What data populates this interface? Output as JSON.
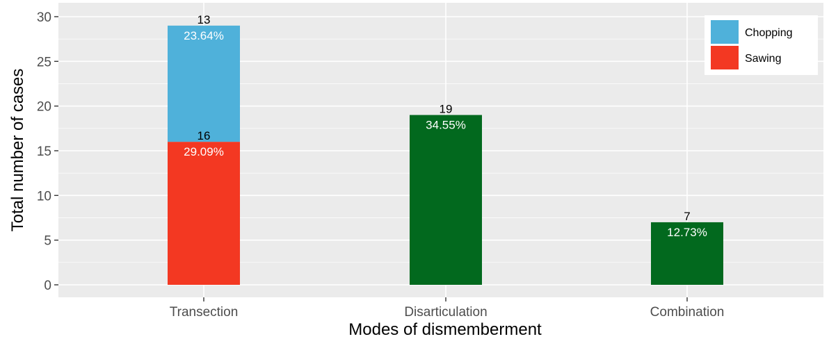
{
  "chart_data": {
    "type": "bar",
    "stacked": true,
    "title": "",
    "xlabel": "Modes of dismemberment",
    "ylabel": "Total number of cases",
    "ylim": [
      0,
      30
    ],
    "yticks": [
      0,
      5,
      10,
      15,
      20,
      25,
      30
    ],
    "grid": true,
    "legend_position": "top-right",
    "categories": [
      "Transection",
      "Disarticulation",
      "Combination"
    ],
    "bars": [
      {
        "category": "Transection",
        "segments": [
          {
            "name": "Sawing",
            "value": 16,
            "count_label": "16",
            "percent_label": "29.09%",
            "color": "#f33822"
          },
          {
            "name": "Chopping",
            "value": 13,
            "count_label": "13",
            "percent_label": "23.64%",
            "color": "#4fb1da"
          }
        ]
      },
      {
        "category": "Disarticulation",
        "segments": [
          {
            "name": "",
            "value": 19,
            "count_label": "19",
            "percent_label": "34.55%",
            "color": "#02691e"
          }
        ]
      },
      {
        "category": "Combination",
        "segments": [
          {
            "name": "",
            "value": 7,
            "count_label": "7",
            "percent_label": "12.73%",
            "color": "#02691e"
          }
        ]
      }
    ],
    "legend": [
      {
        "name": "Chopping",
        "color": "#4fb1da"
      },
      {
        "name": "Sawing",
        "color": "#f33822"
      }
    ],
    "colors": {
      "panel_background": "#ebebeb",
      "gridline": "#ffffff",
      "axis_text": "#4d4d4d"
    }
  }
}
